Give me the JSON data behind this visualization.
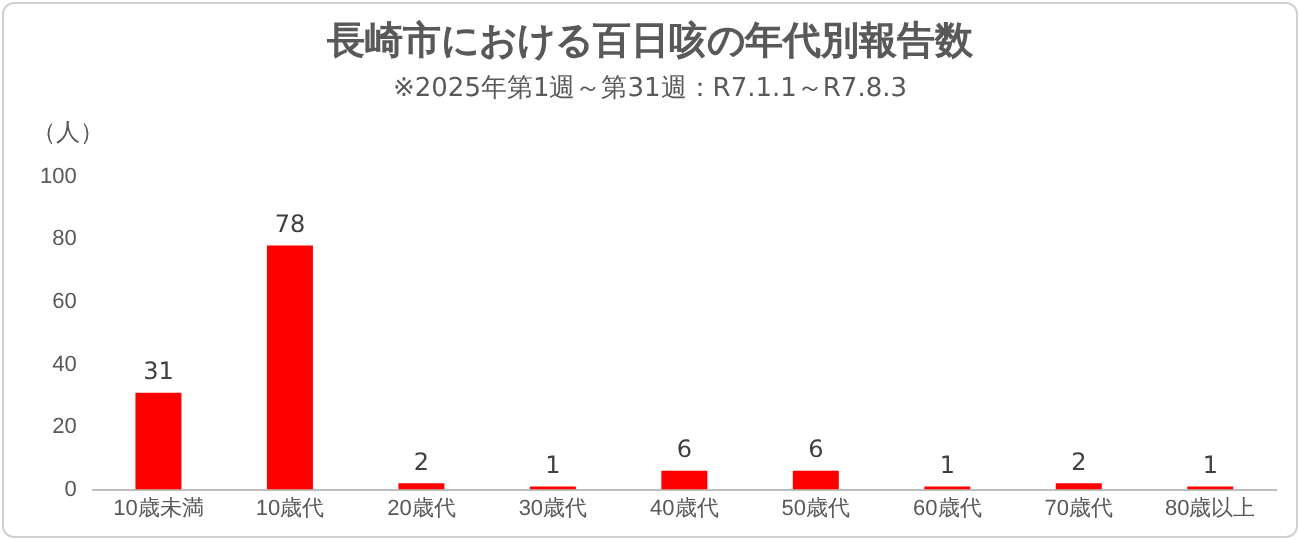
{
  "chart_data": {
    "type": "bar",
    "title": "長崎市における百日咳の年代別報告数",
    "subtitle": "※2025年第1週～第31週：R7.1.1～R7.8.3",
    "ylabel": "（人）",
    "categories": [
      "10歳未満",
      "10歳代",
      "20歳代",
      "30歳代",
      "40歳代",
      "50歳代",
      "60歳代",
      "70歳代",
      "80歳以上"
    ],
    "values": [
      31,
      78,
      2,
      1,
      6,
      6,
      1,
      2,
      1
    ],
    "color": "#ff0000",
    "ylim": [
      0,
      100
    ],
    "yticks": [
      0,
      20,
      40,
      60,
      80,
      100
    ],
    "grid": false,
    "legend": false,
    "data_labels": true
  }
}
